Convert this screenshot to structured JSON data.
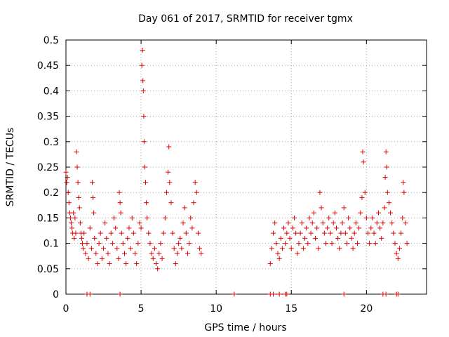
{
  "chart_data": {
    "type": "scatter",
    "title": "Day 061 of 2017, SRMTID for receiver tgmx",
    "xlabel": "GPS time / hours",
    "ylabel": "SRMTID / TECUs",
    "xlim": [
      0,
      24
    ],
    "ylim": [
      0,
      0.5
    ],
    "xticks": [
      0,
      5,
      10,
      15,
      20
    ],
    "xtick_labels": [
      "0",
      "5",
      "10",
      "15",
      "20"
    ],
    "yticks": [
      0,
      0.05,
      0.1,
      0.15,
      0.2,
      0.25,
      0.3,
      0.35,
      0.4,
      0.45,
      0.5
    ],
    "ytick_labels": [
      "0",
      "0.05",
      "0.1",
      "0.15",
      "0.2",
      "0.25",
      "0.3",
      "0.35",
      "0.4",
      "0.45",
      "0.5"
    ],
    "grid": true,
    "marker": "+",
    "color": "#e00000",
    "series": [
      {
        "name": "SRMTID",
        "points": [
          [
            0.0,
            0.24
          ],
          [
            0.05,
            0.22
          ],
          [
            0.1,
            0.23
          ],
          [
            0.15,
            0.2
          ],
          [
            0.2,
            0.18
          ],
          [
            0.25,
            0.16
          ],
          [
            0.3,
            0.15
          ],
          [
            0.35,
            0.14
          ],
          [
            0.4,
            0.13
          ],
          [
            0.45,
            0.12
          ],
          [
            0.5,
            0.16
          ],
          [
            0.55,
            0.11
          ],
          [
            0.6,
            0.15
          ],
          [
            0.65,
            0.12
          ],
          [
            0.7,
            0.28
          ],
          [
            0.75,
            0.25
          ],
          [
            0.8,
            0.22
          ],
          [
            0.85,
            0.19
          ],
          [
            0.9,
            0.17
          ],
          [
            0.95,
            0.14
          ],
          [
            1.0,
            0.12
          ],
          [
            1.05,
            0.11
          ],
          [
            1.1,
            0.1
          ],
          [
            1.15,
            0.09
          ],
          [
            1.2,
            0.12
          ],
          [
            1.3,
            0.08
          ],
          [
            1.4,
            0.1
          ],
          [
            1.5,
            0.07
          ],
          [
            1.6,
            0.13
          ],
          [
            1.7,
            0.09
          ],
          [
            1.75,
            0.22
          ],
          [
            1.8,
            0.19
          ],
          [
            1.85,
            0.16
          ],
          [
            1.9,
            0.11
          ],
          [
            2.0,
            0.08
          ],
          [
            2.1,
            0.06
          ],
          [
            2.2,
            0.1
          ],
          [
            2.3,
            0.12
          ],
          [
            2.4,
            0.07
          ],
          [
            2.5,
            0.09
          ],
          [
            2.6,
            0.14
          ],
          [
            2.7,
            0.11
          ],
          [
            2.8,
            0.08
          ],
          [
            2.9,
            0.06
          ],
          [
            3.0,
            0.12
          ],
          [
            3.1,
            0.1
          ],
          [
            3.2,
            0.15
          ],
          [
            3.3,
            0.13
          ],
          [
            3.4,
            0.09
          ],
          [
            3.5,
            0.07
          ],
          [
            3.55,
            0.2
          ],
          [
            3.6,
            0.18
          ],
          [
            3.65,
            0.16
          ],
          [
            3.7,
            0.12
          ],
          [
            3.8,
            0.1
          ],
          [
            3.9,
            0.08
          ],
          [
            4.0,
            0.06
          ],
          [
            4.1,
            0.11
          ],
          [
            4.2,
            0.13
          ],
          [
            4.3,
            0.09
          ],
          [
            4.4,
            0.15
          ],
          [
            4.5,
            0.12
          ],
          [
            4.6,
            0.08
          ],
          [
            4.7,
            0.06
          ],
          [
            4.8,
            0.1
          ],
          [
            4.9,
            0.14
          ],
          [
            5.0,
            0.13
          ],
          [
            5.05,
            0.45
          ],
          [
            5.1,
            0.48
          ],
          [
            5.12,
            0.42
          ],
          [
            5.15,
            0.4
          ],
          [
            5.18,
            0.35
          ],
          [
            5.2,
            0.3
          ],
          [
            5.25,
            0.25
          ],
          [
            5.3,
            0.22
          ],
          [
            5.35,
            0.18
          ],
          [
            5.4,
            0.15
          ],
          [
            5.5,
            0.12
          ],
          [
            5.6,
            0.1
          ],
          [
            5.7,
            0.08
          ],
          [
            5.8,
            0.07
          ],
          [
            5.9,
            0.09
          ],
          [
            6.0,
            0.06
          ],
          [
            6.1,
            0.05
          ],
          [
            6.2,
            0.08
          ],
          [
            6.3,
            0.1
          ],
          [
            6.4,
            0.07
          ],
          [
            6.5,
            0.12
          ],
          [
            6.6,
            0.15
          ],
          [
            6.7,
            0.2
          ],
          [
            6.8,
            0.24
          ],
          [
            6.85,
            0.29
          ],
          [
            6.9,
            0.22
          ],
          [
            7.0,
            0.18
          ],
          [
            7.1,
            0.12
          ],
          [
            7.2,
            0.09
          ],
          [
            7.3,
            0.06
          ],
          [
            7.4,
            0.08
          ],
          [
            7.5,
            0.1
          ],
          [
            7.6,
            0.11
          ],
          [
            7.7,
            0.09
          ],
          [
            7.8,
            0.14
          ],
          [
            7.9,
            0.17
          ],
          [
            8.0,
            0.12
          ],
          [
            8.1,
            0.08
          ],
          [
            8.2,
            0.1
          ],
          [
            8.3,
            0.15
          ],
          [
            8.4,
            0.13
          ],
          [
            8.5,
            0.18
          ],
          [
            8.6,
            0.22
          ],
          [
            8.7,
            0.2
          ],
          [
            8.8,
            0.12
          ],
          [
            8.9,
            0.09
          ],
          [
            9.0,
            0.08
          ],
          [
            13.6,
            0.06
          ],
          [
            13.7,
            0.09
          ],
          [
            13.8,
            0.12
          ],
          [
            13.9,
            0.14
          ],
          [
            14.0,
            0.1
          ],
          [
            14.1,
            0.08
          ],
          [
            14.2,
            0.07
          ],
          [
            14.3,
            0.11
          ],
          [
            14.4,
            0.09
          ],
          [
            14.5,
            0.13
          ],
          [
            14.6,
            0.1
          ],
          [
            14.7,
            0.12
          ],
          [
            14.8,
            0.14
          ],
          [
            14.9,
            0.11
          ],
          [
            15.0,
            0.09
          ],
          [
            15.1,
            0.13
          ],
          [
            15.2,
            0.15
          ],
          [
            15.3,
            0.12
          ],
          [
            15.4,
            0.08
          ],
          [
            15.5,
            0.1
          ],
          [
            15.6,
            0.12
          ],
          [
            15.7,
            0.14
          ],
          [
            15.8,
            0.09
          ],
          [
            15.9,
            0.11
          ],
          [
            16.0,
            0.13
          ],
          [
            16.1,
            0.1
          ],
          [
            16.2,
            0.15
          ],
          [
            16.3,
            0.12
          ],
          [
            16.4,
            0.14
          ],
          [
            16.5,
            0.16
          ],
          [
            16.6,
            0.11
          ],
          [
            16.7,
            0.13
          ],
          [
            16.8,
            0.09
          ],
          [
            16.9,
            0.2
          ],
          [
            17.0,
            0.17
          ],
          [
            17.1,
            0.14
          ],
          [
            17.2,
            0.12
          ],
          [
            17.3,
            0.1
          ],
          [
            17.4,
            0.13
          ],
          [
            17.5,
            0.15
          ],
          [
            17.6,
            0.12
          ],
          [
            17.7,
            0.1
          ],
          [
            17.8,
            0.14
          ],
          [
            17.9,
            0.16
          ],
          [
            18.0,
            0.13
          ],
          [
            18.1,
            0.11
          ],
          [
            18.2,
            0.09
          ],
          [
            18.3,
            0.12
          ],
          [
            18.4,
            0.14
          ],
          [
            18.5,
            0.17
          ],
          [
            18.6,
            0.12
          ],
          [
            18.7,
            0.1
          ],
          [
            18.8,
            0.15
          ],
          [
            18.9,
            0.13
          ],
          [
            19.0,
            0.11
          ],
          [
            19.1,
            0.09
          ],
          [
            19.2,
            0.12
          ],
          [
            19.3,
            0.14
          ],
          [
            19.4,
            0.1
          ],
          [
            19.5,
            0.13
          ],
          [
            19.6,
            0.16
          ],
          [
            19.7,
            0.19
          ],
          [
            19.75,
            0.28
          ],
          [
            19.8,
            0.26
          ],
          [
            19.9,
            0.2
          ],
          [
            20.0,
            0.15
          ],
          [
            20.1,
            0.12
          ],
          [
            20.2,
            0.1
          ],
          [
            20.3,
            0.13
          ],
          [
            20.4,
            0.15
          ],
          [
            20.5,
            0.12
          ],
          [
            20.6,
            0.1
          ],
          [
            20.7,
            0.14
          ],
          [
            20.8,
            0.16
          ],
          [
            20.9,
            0.13
          ],
          [
            21.0,
            0.11
          ],
          [
            21.1,
            0.14
          ],
          [
            21.2,
            0.17
          ],
          [
            21.25,
            0.23
          ],
          [
            21.3,
            0.28
          ],
          [
            21.35,
            0.25
          ],
          [
            21.4,
            0.2
          ],
          [
            21.5,
            0.18
          ],
          [
            21.6,
            0.16
          ],
          [
            21.7,
            0.14
          ],
          [
            21.8,
            0.12
          ],
          [
            21.9,
            0.1
          ],
          [
            22.0,
            0.08
          ],
          [
            22.1,
            0.07
          ],
          [
            22.2,
            0.09
          ],
          [
            22.3,
            0.12
          ],
          [
            22.4,
            0.15
          ],
          [
            22.45,
            0.22
          ],
          [
            22.5,
            0.2
          ],
          [
            22.6,
            0.14
          ],
          [
            22.7,
            0.1
          ]
        ]
      }
    ],
    "zero_points": [
      1.4,
      1.6,
      3.6,
      11.2,
      13.6,
      13.8,
      14.2,
      14.6,
      14.7,
      18.5,
      21.1,
      21.3,
      22.0,
      22.1
    ]
  }
}
